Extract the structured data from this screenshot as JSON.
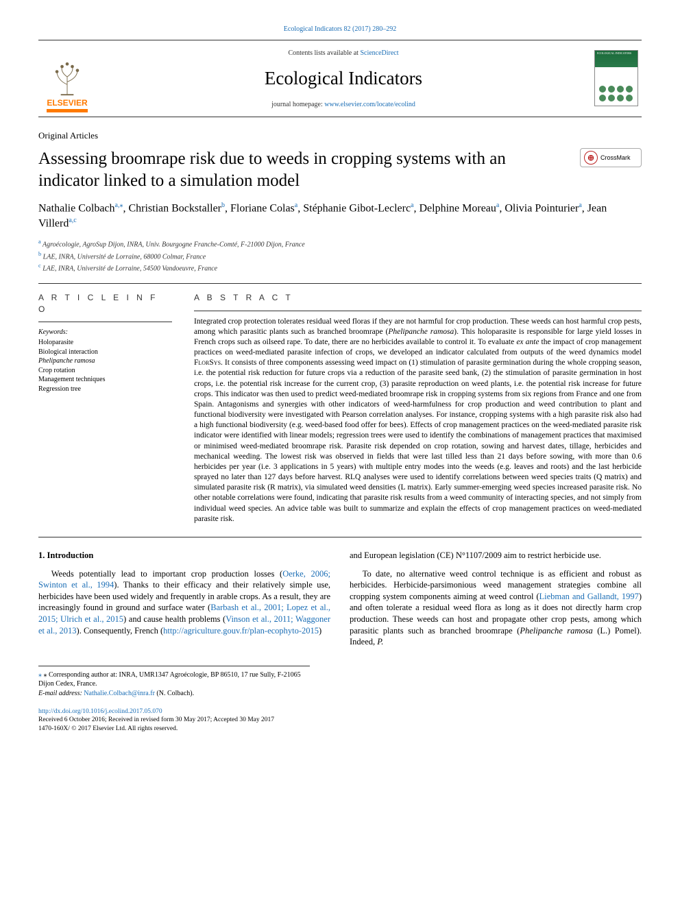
{
  "journalRef": "Ecological Indicators 82 (2017) 280–292",
  "header": {
    "contentsListText": "Contents lists available at ",
    "contentsListLink": "ScienceDirect",
    "journalTitle": "Ecological Indicators",
    "homepagePrefix": "journal homepage: ",
    "homepageUrl": "www.elsevier.com/locate/ecolind",
    "elsevierLabel": "ELSEVIER",
    "coverTitle": "ECOLOGICAL INDICATORS"
  },
  "article": {
    "type": "Original Articles",
    "title": "Assessing broomrape risk due to weeds in cropping systems with an indicator linked to a simulation model",
    "crossmarkLabel": "CrossMark",
    "authorsHtml": "Nathalie Colbach<sup>a,</sup><sup>⁎</sup>, Christian Bockstaller<sup>b</sup>, Floriane Colas<sup>a</sup>, Stéphanie Gibot-Leclerc<sup>a</sup>, Delphine Moreau<sup>a</sup>, Olivia Pointurier<sup>a</sup>, Jean Villerd<sup>a,c</sup>",
    "affiliations": [
      {
        "marker": "a",
        "text": "Agroécologie, AgroSup Dijon, INRA, Univ. Bourgogne Franche-Comté, F-21000 Dijon, France"
      },
      {
        "marker": "b",
        "text": "LAE, INRA, Université de Lorraine, 68000 Colmar, France"
      },
      {
        "marker": "c",
        "text": "LAE, INRA, Université de Lorraine, 54500 Vandoeuvre, France"
      }
    ]
  },
  "info": {
    "heading": "A R T I C L E  I N F O",
    "keywordsLabel": "Keywords:",
    "keywords": [
      "Holoparasite",
      "Biological interaction",
      "Phelipanche ramosa",
      "Crop rotation",
      "Management techniques",
      "Regression tree"
    ]
  },
  "abstract": {
    "heading": "A B S T R A C T",
    "text": "Integrated crop protection tolerates residual weed floras if they are not harmful for crop production. These weeds can host harmful crop pests, among which parasitic plants such as branched broomrape (<em>Phelipanche ramosa</em>). This holoparasite is responsible for large yield losses in French crops such as oilseed rape. To date, there are no herbicides available to control it. To evaluate <em>ex ante</em> the impact of crop management practices on weed-mediated parasite infection of crops, we developed an indicator calculated from outputs of the weed dynamics model <span class=\"sc\">FlorSys</span>. It consists of three components assessing weed impact on (1) stimulation of parasite germination during the whole cropping season, i.e. the potential risk reduction for future crops via a reduction of the parasite seed bank, (2) the stimulation of parasite germination in host crops, i.e. the potential risk increase for the current crop, (3) parasite reproduction on weed plants, i.e. the potential risk increase for future crops. This indicator was then used to predict weed-mediated broomrape risk in cropping systems from six regions from France and one from Spain. Antagonisms and synergies with other indicators of weed-harmfulness for crop production and weed contribution to plant and functional biodiversity were investigated with Pearson correlation analyses. For instance, cropping systems with a high parasite risk also had a high functional biodiversity (e.g. weed-based food offer for bees). Effects of crop management practices on the weed-mediated parasite risk indicator were identified with linear models; regression trees were used to identify the combinations of management practices that maximised or minimised weed-mediated broomrape risk. Parasite risk depended on crop rotation, sowing and harvest dates, tillage, herbicides and mechanical weeding. The lowest risk was observed in fields that were last tilled less than 21 days before sowing, with more than 0.6 herbicides per year (i.e. 3 applications in 5 years) with multiple entry modes into the weeds (e.g. leaves and roots) and the last herbicide sprayed no later than 127 days before harvest. RLQ analyses were used to identify correlations between weed species traits (Q matrix) and simulated parasite risk (R matrix), via simulated weed densities (L matrix). Early summer-emerging weed species increased parasite risk. No other notable correlations were found, indicating that parasite risk results from a weed community of interacting species, and not simply from individual weed species. An advice table was built to summarize and explain the effects of crop management practices on weed-mediated parasite risk."
  },
  "body": {
    "introHeading": "1. Introduction",
    "p1": "Weeds potentially lead to important crop production losses (<a href=\"#\">Oerke, 2006; Swinton et al., 1994</a>). Thanks to their efficacy and their relatively simple use, herbicides have been used widely and frequently in arable crops. As a result, they are increasingly found in ground and surface water (<a href=\"#\">Barbash et al., 2001; Lopez et al., 2015; Ulrich et al., 2015</a>) and cause health problems (<a href=\"#\">Vinson et al., 2011; Waggoner et al., 2013</a>). Consequently, French (<a href=\"#\">http://agriculture.gouv.fr/plan-ecophyto-2015</a>)",
    "p2": "and European legislation (CE) N°1107/2009 aim to restrict herbicide use.",
    "p3": "To date, no alternative weed control technique is as efficient and robust as herbicides. Herbicide-parsimonious weed management strategies combine all cropping system components aiming at weed control (<a href=\"#\">Liebman and Gallandt, 1997</a>) and often tolerate a residual weed flora as long as it does not directly harm crop production. These weeds can host and propagate other crop pests, among which parasitic plants such as branched broomrape (<em>Phelipanche ramosa</em> (L.) Pomel). Indeed, <em>P.</em>"
  },
  "footnotes": {
    "correspondingPrefix": "⁎ Corresponding author at: ",
    "correspondingText": "INRA, UMR1347 Agroécologie, BP 86510, 17 rue Sully, F-21065 Dijon Cedex, France.",
    "emailLabel": "E-mail address: ",
    "email": "Nathalie.Colbach@inra.fr",
    "emailSuffix": " (N. Colbach)."
  },
  "doi": {
    "url": "http://dx.doi.org/10.1016/j.ecolind.2017.05.070",
    "received": "Received 6 October 2016; Received in revised form 30 May 2017; Accepted 30 May 2017",
    "copyright": "1470-160X/ © 2017 Elsevier Ltd. All rights reserved."
  },
  "colors": {
    "link": "#1a6db5",
    "elsevierOrange": "#ff7a00",
    "ruleColor": "#333333",
    "crossmarkRed": "#b22222"
  },
  "fonts": {
    "bodySize": 12.5,
    "abstractSize": 11.5,
    "titleSize": 25,
    "journalTitleSize": 27,
    "smallSize": 10
  }
}
